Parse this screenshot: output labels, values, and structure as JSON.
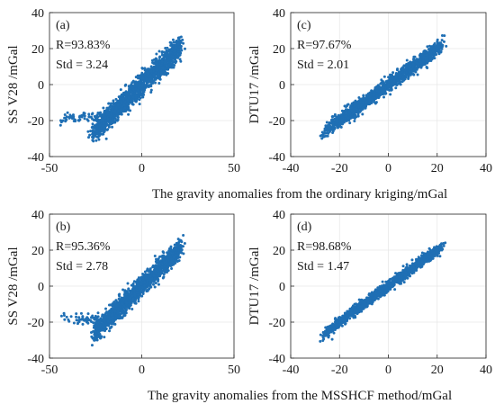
{
  "figure": {
    "xlabel_top_row": "The gravity anomalies from the ordinary kriging/mGal",
    "xlabel_bottom_row": "The gravity anomalies from the MSSHCF method/mGal"
  },
  "chart_data": [
    {
      "id": "a",
      "type": "scatter",
      "panel_label": "(a)",
      "ylabel": "SS V28 /mGal",
      "r_text": "R=93.83%",
      "std_text": "Std = 3.24",
      "xlim": [
        -50,
        50
      ],
      "ylim": [
        -40,
        40
      ],
      "xticks": [
        "-50",
        "0",
        "50"
      ],
      "yticks": [
        "40",
        "20",
        "0",
        "-20",
        "-40"
      ],
      "color": "#1f6fb4",
      "grid": true,
      "n_points": 1500,
      "noise_std": 3.24,
      "x_range": [
        -26,
        21
      ],
      "outlier_tail": true
    },
    {
      "id": "c",
      "type": "scatter",
      "panel_label": "(c)",
      "ylabel": "DTU17 /mGal",
      "r_text": "R=97.67%",
      "std_text": "Std = 2.01",
      "xlim": [
        -40,
        40
      ],
      "ylim": [
        -40,
        40
      ],
      "xticks": [
        "-40",
        "-20",
        "0",
        "20",
        "40"
      ],
      "yticks": [
        "40",
        "20",
        "0",
        "-20",
        "-40"
      ],
      "color": "#1f6fb4",
      "grid": true,
      "n_points": 1500,
      "noise_std": 2.01,
      "x_range": [
        -26,
        21
      ],
      "outlier_tail": false
    },
    {
      "id": "b",
      "type": "scatter",
      "panel_label": "(b)",
      "ylabel": "SS V28 /mGal",
      "r_text": "R=95.36%",
      "std_text": "Std = 2.78",
      "xlim": [
        -50,
        50
      ],
      "ylim": [
        -40,
        40
      ],
      "xticks": [
        "-50",
        "0",
        "50"
      ],
      "yticks": [
        "40",
        "20",
        "0",
        "-20",
        "-40"
      ],
      "color": "#1f6fb4",
      "grid": true,
      "n_points": 1500,
      "noise_std": 2.78,
      "x_range": [
        -26,
        21
      ],
      "outlier_tail": true
    },
    {
      "id": "d",
      "type": "scatter",
      "panel_label": "(d)",
      "ylabel": "DTU17 /mGal",
      "r_text": "R=98.68%",
      "std_text": "Std = 1.47",
      "xlim": [
        -40,
        40
      ],
      "ylim": [
        -40,
        40
      ],
      "xticks": [
        "-40",
        "-20",
        "0",
        "20",
        "40"
      ],
      "yticks": [
        "40",
        "20",
        "0",
        "-20",
        "-40"
      ],
      "color": "#1f6fb4",
      "grid": true,
      "n_points": 1500,
      "noise_std": 1.47,
      "x_range": [
        -26,
        21
      ],
      "outlier_tail": false
    }
  ]
}
